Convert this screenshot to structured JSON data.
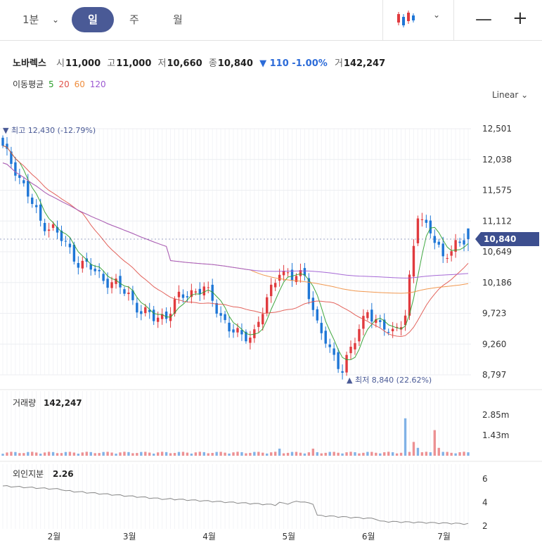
{
  "toolbar": {
    "timeframes": [
      "1분",
      "일",
      "주",
      "월"
    ],
    "active": "일",
    "chart_type_icon": "candlestick-icon",
    "zoom_out": "—",
    "zoom_in": "+"
  },
  "quote": {
    "name": "노바렉스",
    "open_label": "시",
    "open": "11,000",
    "high_label": "고",
    "high": "11,000",
    "low_label": "저",
    "low": "10,660",
    "close_label": "종",
    "close": "10,840",
    "change": "▼ 110 -1.00%",
    "volume_label": "거",
    "volume": "142,247"
  },
  "ma": {
    "label": "이동평균",
    "periods": [
      "5",
      "20",
      "60",
      "120"
    ],
    "colors": [
      "#2a9d2a",
      "#e0524a",
      "#ef8d3d",
      "#9c59d1"
    ]
  },
  "scale": {
    "mode": "Linear"
  },
  "price_axis": {
    "ticks": [
      "12,501",
      "12,038",
      "11,575",
      "11,112",
      "10,649",
      "10,186",
      "9,723",
      "9,260",
      "8,797"
    ],
    "current": "10,840"
  },
  "markers": {
    "high": "최고 12,430 (-12.79%)",
    "low": "최저 8,840 (22.62%)"
  },
  "volume_panel": {
    "label": "거래량",
    "value": "142,247",
    "ticks": [
      "2.85m",
      "1.43m"
    ]
  },
  "foreign_panel": {
    "label": "외인지분",
    "value": "2.26",
    "ticks": [
      "6",
      "4",
      "2"
    ]
  },
  "time_axis": {
    "labels": [
      "2월",
      "3월",
      "4월",
      "5월",
      "6월",
      "7월"
    ]
  },
  "colors": {
    "up": "#e03a3e",
    "down": "#1e76d6",
    "accent": "#4a5a96",
    "price_tag": "#3d4f8f"
  },
  "chart_data": {
    "type": "candlestick",
    "title": "노바렉스",
    "ylim": [
      8797,
      12501
    ],
    "ohlc_anchor_closes": [
      12200,
      11900,
      11500,
      11100,
      11000,
      10750,
      10500,
      10400,
      10250,
      10150,
      10000,
      9750,
      9650,
      9700,
      9950,
      10050,
      10100,
      9800,
      9500,
      9350,
      9450,
      9900,
      10400,
      10250,
      10300,
      9550,
      9150,
      8900,
      9300,
      9800,
      9500,
      9450,
      9700,
      11200,
      11000,
      10500,
      10800,
      10840
    ],
    "last_candle": {
      "open": 11000,
      "high": 11000,
      "low": 10660,
      "close": 10840
    },
    "high_marker": 12430,
    "low_marker": 8840,
    "volume_max": 2850000,
    "foreign_ratio_range": [
      2,
      6
    ]
  }
}
